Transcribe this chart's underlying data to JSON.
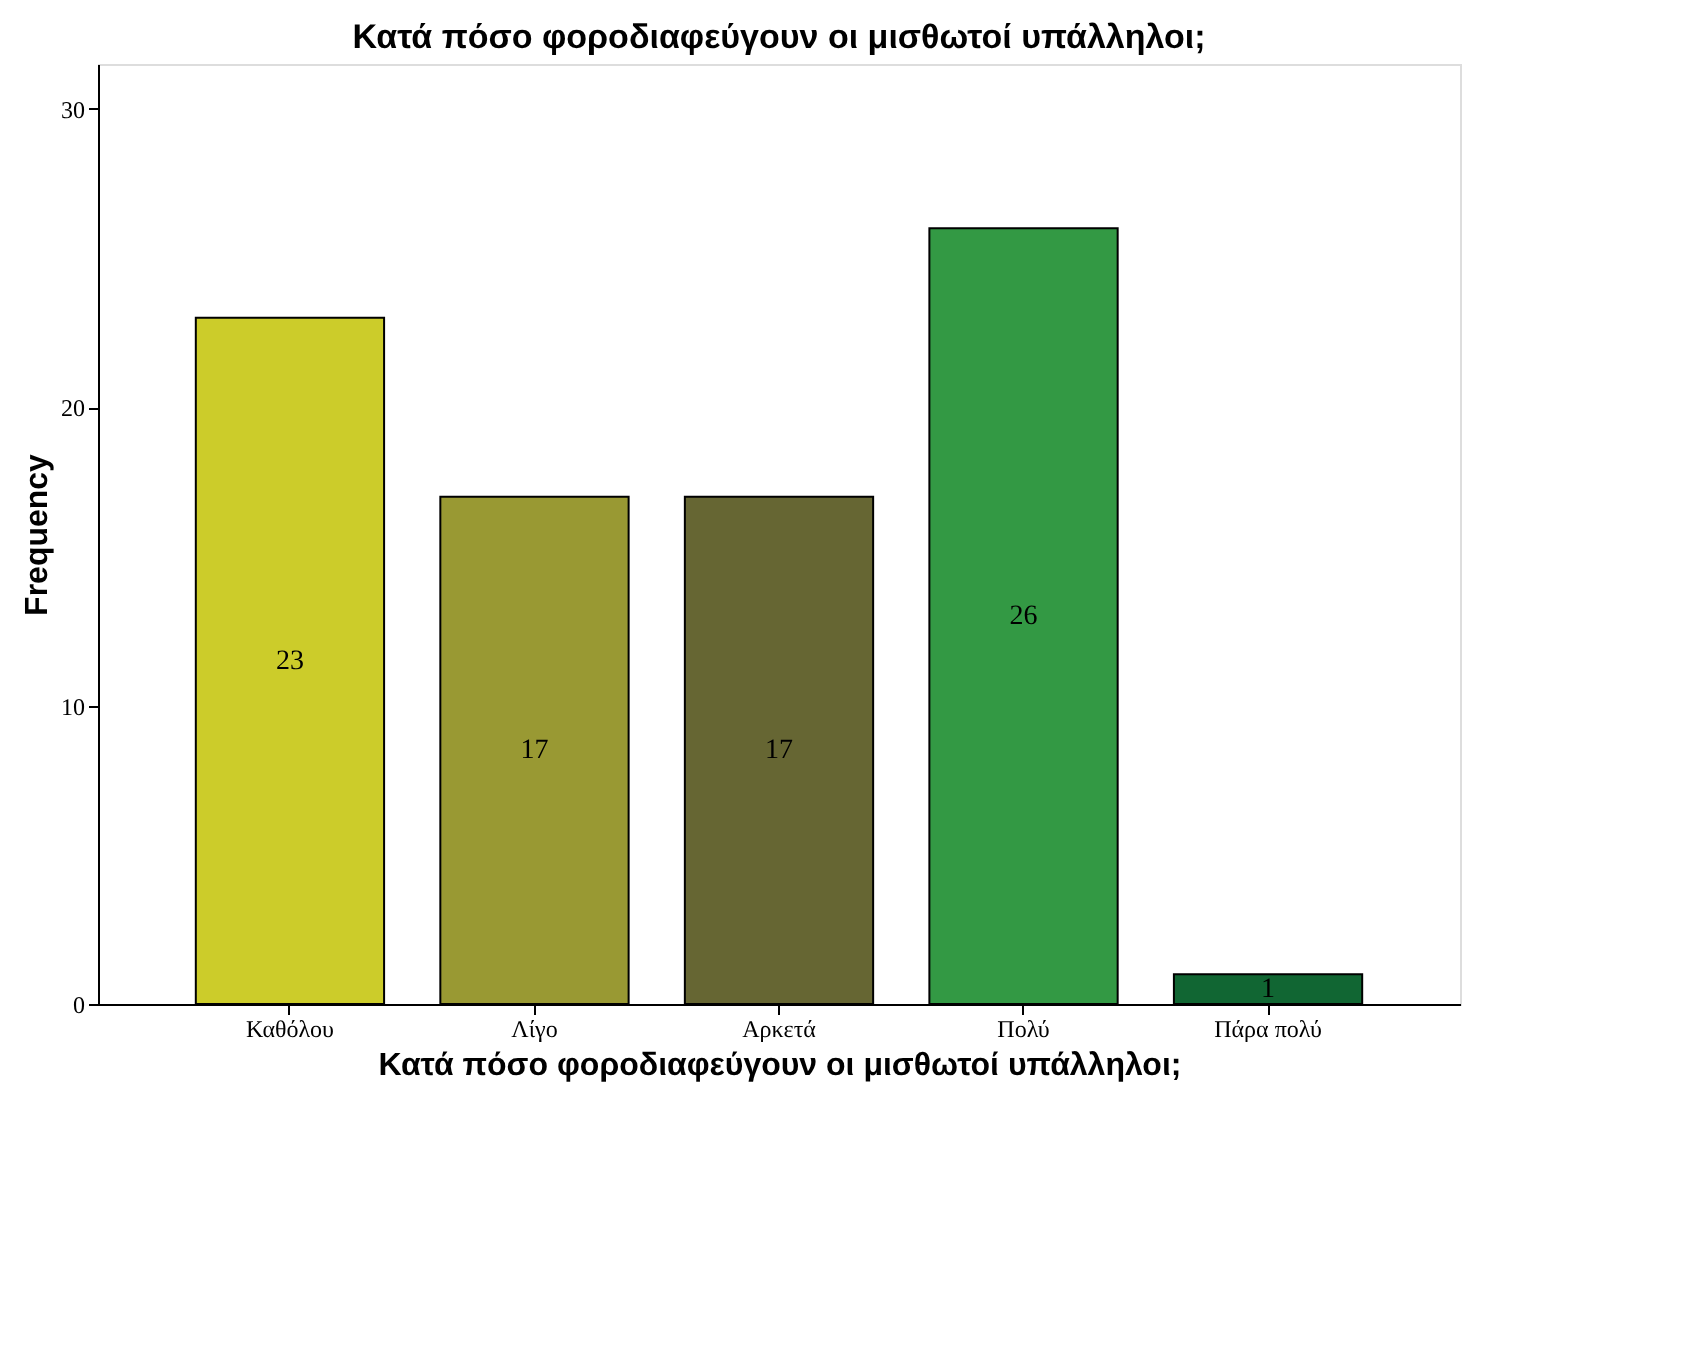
{
  "chart_data": {
    "type": "bar",
    "title": "Κατά πόσο φοροδιαφεύγουν οι μισθωτοί υπάλληλοι;",
    "xlabel": "Κατά πόσο φοροδιαφεύγουν οι μισθωτοί υπάλληλοι;",
    "ylabel": "Frequency",
    "categories": [
      "Καθόλου",
      "Λίγο",
      "Αρκετά",
      "Πολύ",
      "Πάρα πολύ"
    ],
    "values": [
      23,
      17,
      17,
      26,
      1
    ],
    "colors": [
      "#cccc2a",
      "#999933",
      "#666633",
      "#339944",
      "#116633"
    ],
    "ylim": [
      0,
      31.5
    ],
    "yticks": [
      0,
      10,
      20,
      30
    ],
    "grid": false,
    "legend": false,
    "data_labels": true
  }
}
